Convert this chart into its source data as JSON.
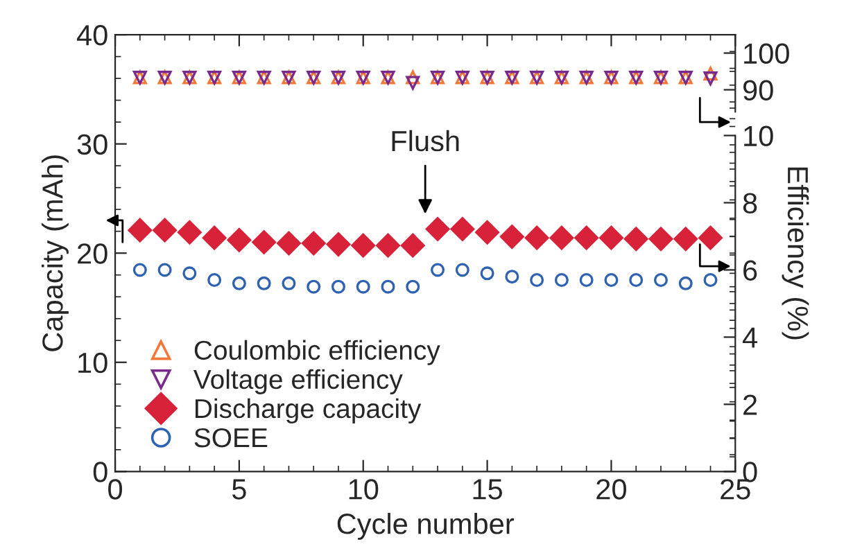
{
  "chart_data": {
    "type": "scatter",
    "xlabel": "Cycle number",
    "ylabel": "Capacity (mAh)",
    "y2label": "Efficiency (%)",
    "x": [
      1,
      2,
      3,
      4,
      5,
      6,
      7,
      8,
      9,
      10,
      11,
      12,
      13,
      14,
      15,
      16,
      17,
      18,
      19,
      20,
      21,
      22,
      23,
      24
    ],
    "xlim": [
      0,
      25
    ],
    "xticks": [
      0,
      5,
      10,
      15,
      20,
      25
    ],
    "ylim": [
      0,
      40
    ],
    "yticks": [
      0,
      10,
      20,
      30,
      40
    ],
    "y2lim": [
      0,
      13.0
    ],
    "y2ticks": [
      0,
      2,
      4,
      6,
      8,
      10
    ],
    "y3lim": [
      -14.0,
      105.0
    ],
    "y3ticks": [
      90,
      100
    ],
    "legend": "bottom left",
    "grid": false,
    "annotations": [
      "Flush"
    ],
    "series": [
      {
        "name": "Coulombic efficiency",
        "color": "#f07838",
        "marker": "triangle",
        "axis": "y3",
        "values": [
          93.4,
          93.4,
          93.4,
          93.4,
          93.4,
          93.4,
          93.4,
          93.4,
          93.4,
          93.4,
          93.4,
          93.4,
          93.4,
          93.4,
          93.4,
          93.4,
          93.4,
          93.4,
          93.4,
          93.4,
          93.4,
          93.4,
          93.4,
          94.4
        ]
      },
      {
        "name": "Voltage efficiency",
        "color": "#7a2a8c",
        "marker": "triangle_down",
        "axis": "y3",
        "values": [
          93.3,
          93.3,
          93.3,
          93.3,
          93.3,
          93.3,
          93.3,
          93.3,
          93.3,
          93.3,
          93.3,
          91.9,
          93.3,
          93.3,
          93.3,
          93.3,
          93.3,
          93.3,
          93.3,
          93.3,
          93.3,
          93.3,
          93.3,
          93.1
        ]
      },
      {
        "name": "Discharge capacity",
        "color": "#d7223a",
        "marker": "diamond",
        "axis": "y",
        "values": [
          22.1,
          22.1,
          21.9,
          21.4,
          21.2,
          21.0,
          20.9,
          20.9,
          20.8,
          20.7,
          20.7,
          20.7,
          22.2,
          22.2,
          21.9,
          21.5,
          21.4,
          21.4,
          21.4,
          21.4,
          21.3,
          21.3,
          21.3,
          21.4
        ]
      },
      {
        "name": "SOEE",
        "color": "#2f62b0",
        "marker": "circle",
        "axis": "y2",
        "values": [
          6.0,
          6.0,
          5.9,
          5.7,
          5.6,
          5.6,
          5.6,
          5.5,
          5.5,
          5.5,
          5.5,
          5.5,
          6.0,
          6.0,
          5.9,
          5.8,
          5.7,
          5.7,
          5.7,
          5.7,
          5.7,
          5.7,
          5.6,
          5.7
        ]
      }
    ]
  }
}
